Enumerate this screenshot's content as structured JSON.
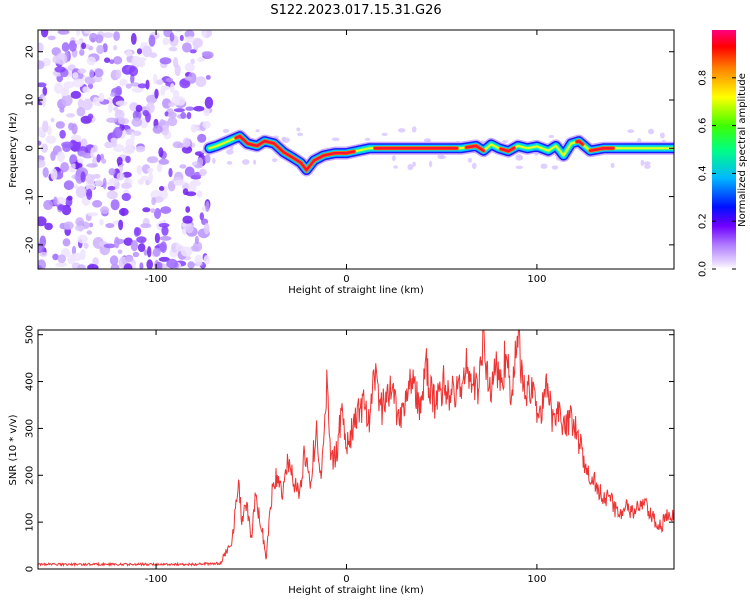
{
  "figure": {
    "title": "S122.2023.017.15.31.G26"
  },
  "chart_data": [
    {
      "type": "heatmap",
      "xlabel": "Height of straight line (km)",
      "ylabel": "Frequency (Hz)",
      "xlim": [
        -162,
        172
      ],
      "ylim": [
        -25,
        24.5
      ],
      "xticks": [
        -100,
        0,
        100
      ],
      "yticks": [
        -20,
        -10,
        0,
        10,
        20
      ],
      "noise_region_x": [
        -162,
        -72
      ],
      "signal_region_x": [
        -72,
        172
      ],
      "colorbar": {
        "label": "Normalized spectral amplitude",
        "range": [
          0.0,
          1.0
        ],
        "ticks": [
          0.0,
          0.2,
          0.4,
          0.6,
          0.8
        ],
        "tick_labels": [
          "0.0",
          "0.2",
          "0.4",
          "0.6",
          "0.8"
        ],
        "colors": [
          "#ffffff",
          "#d9c0ff",
          "#8000ff",
          "#0000ff",
          "#00c0ff",
          "#00ff40",
          "#ffff00",
          "#ff8000",
          "#ff0000",
          "#ff0080"
        ]
      },
      "ridge_center": [
        [
          -72,
          0.0
        ],
        [
          -68,
          0.5
        ],
        [
          -62,
          1.5
        ],
        [
          -56,
          2.5
        ],
        [
          -52,
          1.0
        ],
        [
          -47,
          0.5
        ],
        [
          -43,
          1.5
        ],
        [
          -38,
          1.0
        ],
        [
          -33,
          -0.8
        ],
        [
          -28,
          -2.0
        ],
        [
          -24,
          -3.0
        ],
        [
          -21,
          -4.5
        ],
        [
          -17,
          -2.5
        ],
        [
          -12,
          -1.5
        ],
        [
          -6,
          -1.0
        ],
        [
          0,
          -1.0
        ],
        [
          6,
          -0.5
        ],
        [
          12,
          0.0
        ],
        [
          40,
          0.0
        ],
        [
          60,
          0.0
        ],
        [
          68,
          0.5
        ],
        [
          72,
          -0.5
        ],
        [
          76,
          0.8
        ],
        [
          80,
          0.0
        ],
        [
          85,
          -0.6
        ],
        [
          90,
          0.5
        ],
        [
          95,
          0.0
        ],
        [
          100,
          0.4
        ],
        [
          106,
          -0.5
        ],
        [
          110,
          0.5
        ],
        [
          114,
          -1.5
        ],
        [
          118,
          1.0
        ],
        [
          122,
          1.5
        ],
        [
          128,
          -0.5
        ],
        [
          135,
          0.0
        ],
        [
          150,
          0.0
        ],
        [
          172,
          0.0
        ]
      ],
      "ridge_peak_x": [
        [
          -58,
          4
        ],
        [
          15,
          58
        ],
        [
          63,
          72
        ],
        [
          81,
          88
        ],
        [
          121,
          124
        ],
        [
          128,
          140
        ]
      ]
    },
    {
      "type": "line",
      "xlabel": "Height of straight line (km)",
      "ylabel": "SNR (10 * v/v)",
      "xlim": [
        -162,
        172
      ],
      "ylim": [
        0,
        510
      ],
      "xticks": [
        -100,
        0,
        100
      ],
      "yticks": [
        0,
        100,
        200,
        300,
        400,
        500
      ],
      "series": [
        {
          "color": "#ee3333",
          "x": [
            -162,
            -140,
            -120,
            -100,
            -80,
            -66,
            -60,
            -57,
            -55,
            -52,
            -50,
            -48,
            -45,
            -42,
            -40,
            -37,
            -34,
            -31,
            -28,
            -25,
            -22,
            -19,
            -16,
            -13,
            -10,
            -8,
            -5,
            -2,
            0,
            3,
            6,
            9,
            12,
            15,
            18,
            21,
            24,
            27,
            30,
            33,
            36,
            39,
            42,
            45,
            48,
            51,
            54,
            57,
            60,
            63,
            66,
            69,
            72,
            75,
            78,
            81,
            84,
            87,
            90,
            93,
            96,
            99,
            102,
            105,
            108,
            111,
            114,
            117,
            120,
            123,
            126,
            129,
            132,
            135,
            138,
            141,
            144,
            147,
            150,
            153,
            156,
            159,
            162,
            165,
            168,
            172
          ],
          "y": [
            10,
            10,
            10,
            10,
            10,
            12,
            60,
            190,
            110,
            130,
            60,
            150,
            100,
            20,
            140,
            200,
            160,
            230,
            190,
            160,
            250,
            180,
            300,
            200,
            410,
            220,
            260,
            350,
            250,
            300,
            330,
            360,
            300,
            420,
            340,
            360,
            400,
            330,
            340,
            420,
            380,
            340,
            430,
            360,
            360,
            400,
            370,
            380,
            380,
            440,
            390,
            390,
            490,
            370,
            440,
            390,
            470,
            360,
            510,
            380,
            380,
            360,
            330,
            380,
            330,
            340,
            310,
            320,
            300,
            260,
            200,
            200,
            170,
            160,
            150,
            130,
            120,
            130,
            120,
            130,
            140,
            120,
            100,
            90,
            110,
            110
          ]
        }
      ]
    }
  ]
}
